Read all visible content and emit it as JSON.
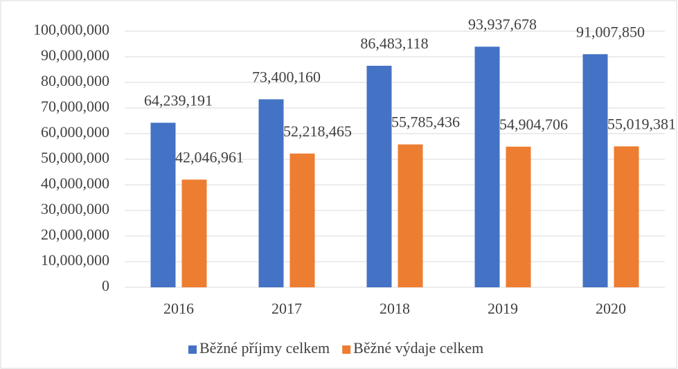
{
  "chart_data": {
    "type": "bar",
    "categories": [
      "2016",
      "2017",
      "2018",
      "2019",
      "2020"
    ],
    "series": [
      {
        "name": "Běžné příjmy celkem",
        "color": "#4472c4",
        "values": [
          64239191,
          73400160,
          86483118,
          93937678,
          91007850
        ],
        "value_labels": [
          "64,239,191",
          "73,400,160",
          "86,483,118",
          "93,937,678",
          "91,007,850"
        ]
      },
      {
        "name": "Běžné výdaje celkem",
        "color": "#ed7d31",
        "values": [
          42046961,
          52218465,
          55785436,
          54904706,
          55019381
        ],
        "value_labels": [
          "42,046,961",
          "52,218,465",
          "55,785,436",
          "54,904,706",
          "55,019,381"
        ]
      }
    ],
    "ylim": [
      0,
      100000000
    ],
    "yticks": [
      0,
      {
        "value": 10000000,
        "label": "10,000,000"
      },
      {
        "value": 20000000,
        "label": "20,000,000"
      },
      {
        "value": 30000000,
        "label": "30,000,000"
      },
      {
        "value": 40000000,
        "label": "40,000,000"
      },
      {
        "value": 50000000,
        "label": "50,000,000"
      },
      {
        "value": 60000000,
        "label": "60,000,000"
      },
      {
        "value": 70000000,
        "label": "70,000,000"
      },
      {
        "value": 80000000,
        "label": "80,000,000"
      },
      {
        "value": 90000000,
        "label": "90,000,000"
      },
      {
        "value": 100000000,
        "label": "100,000,000"
      }
    ],
    "grid": true,
    "legend": "bottom"
  }
}
